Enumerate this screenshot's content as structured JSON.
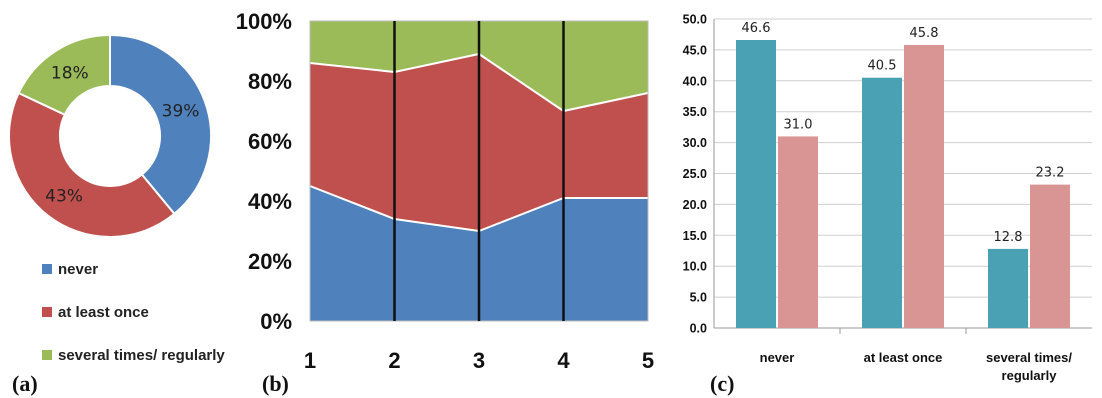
{
  "panel_labels": {
    "a": "(a)",
    "b": "(b)",
    "c": "(c)"
  },
  "colors": {
    "never": "#4f81bd",
    "at_least_once": "#c0504d",
    "several": "#9bbb59",
    "teal": "#4aa1b4",
    "pink": "#d99594"
  },
  "chart_data": [
    {
      "id": "a",
      "type": "pie",
      "donut": true,
      "slices": [
        {
          "name": "never",
          "value": 39,
          "label": "39%"
        },
        {
          "name": "at least once",
          "value": 43,
          "label": "43%"
        },
        {
          "name": "several times/ regularly",
          "value": 18,
          "label": "18%"
        }
      ],
      "legend": [
        "never",
        "at least once",
        "several times/ regularly"
      ],
      "legend_placement": "bottom"
    },
    {
      "id": "b",
      "type": "area",
      "stacked_percent": true,
      "x": [
        1,
        2,
        3,
        4,
        5
      ],
      "x_tick_labels": [
        "1",
        "2",
        "3",
        "4",
        "5"
      ],
      "y_tick_labels": [
        "0%",
        "20%",
        "40%",
        "60%",
        "80%",
        "100%"
      ],
      "ylim": [
        0,
        100
      ],
      "series": [
        {
          "name": "never",
          "values": [
            45,
            34,
            30,
            41,
            41
          ]
        },
        {
          "name": "at least once",
          "values": [
            41,
            49,
            59,
            29,
            35
          ]
        },
        {
          "name": "several times/ regularly",
          "values": [
            14,
            17,
            11,
            30,
            24
          ]
        }
      ],
      "vertical_lines_at": [
        2,
        3,
        4
      ]
    },
    {
      "id": "c",
      "type": "bar",
      "categories": [
        "never",
        "at least once",
        "several times/ regularly"
      ],
      "category_lines": [
        [
          "never"
        ],
        [
          "at least once"
        ],
        [
          "several times/",
          "regularly"
        ]
      ],
      "series": [
        {
          "values": [
            46.6,
            40.5,
            12.8
          ],
          "value_labels": [
            "46.6",
            "40.5",
            "12.8"
          ]
        },
        {
          "values": [
            31.0,
            45.8,
            23.2
          ],
          "value_labels": [
            "31.0",
            "45.8",
            "23.2"
          ]
        }
      ],
      "ylim": [
        0,
        50
      ],
      "y_tick_labels": [
        "0.0",
        "5.0",
        "10.0",
        "15.0",
        "20.0",
        "25.0",
        "30.0",
        "35.0",
        "40.0",
        "45.0",
        "50.0"
      ],
      "grid": true
    }
  ]
}
